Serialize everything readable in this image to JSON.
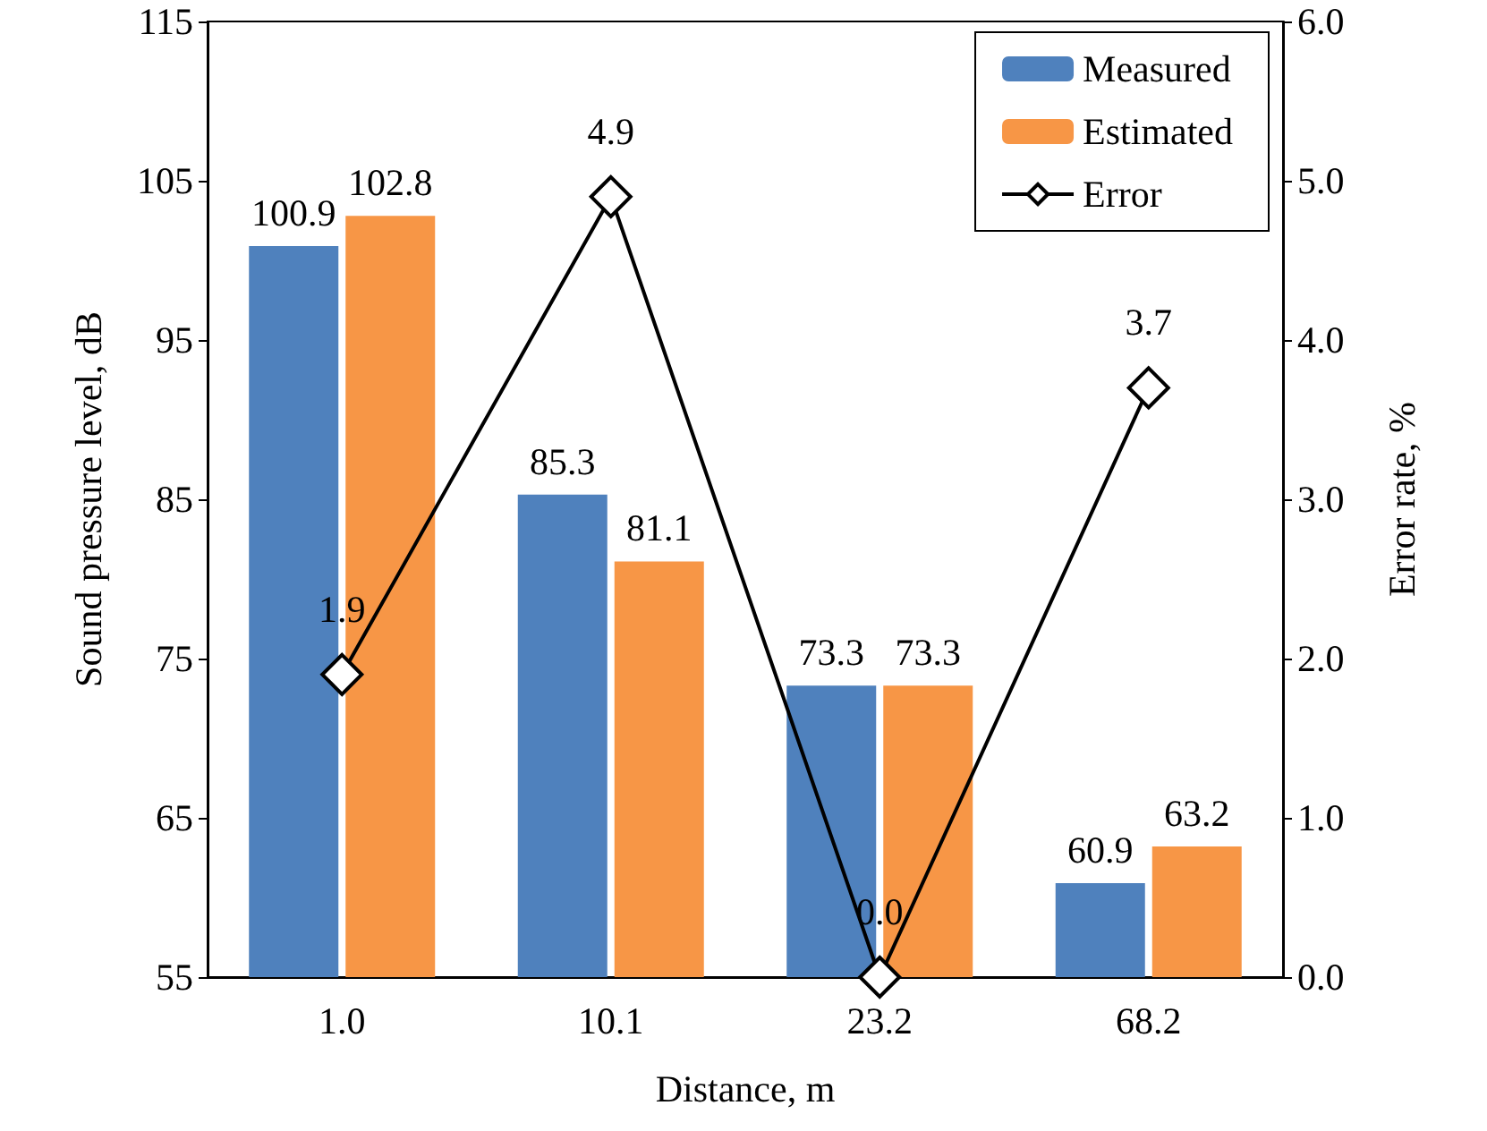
{
  "chart_data": {
    "type": "bar",
    "xlabel": "Distance, m",
    "ylabel": "Sound pressure level, dB",
    "y2label": "Error rate, %",
    "categories": [
      "1.0",
      "10.1",
      "23.2",
      "68.2"
    ],
    "series": [
      {
        "name": "Measured",
        "color": "#4f81bd",
        "values": [
          100.9,
          85.3,
          73.3,
          60.9
        ],
        "value_labels": [
          "100.9",
          "85.3",
          "73.3",
          "60.9"
        ]
      },
      {
        "name": "Estimated",
        "color": "#f79646",
        "values": [
          102.8,
          81.1,
          73.3,
          63.2
        ],
        "value_labels": [
          "102.8",
          "81.1",
          "73.3",
          "63.2"
        ]
      },
      {
        "name": "Error",
        "type": "line",
        "axis": "y2",
        "color": "#000000",
        "marker": "diamond",
        "values": [
          1.9,
          4.9,
          0.0,
          3.7
        ],
        "value_labels": [
          "1.9",
          "4.9",
          "0.0",
          "3.7"
        ]
      }
    ],
    "ylim": [
      55,
      115
    ],
    "yticks": [
      55,
      65,
      75,
      85,
      95,
      105,
      115
    ],
    "y2lim": [
      0,
      6
    ],
    "y2ticks": [
      {
        "value": 0,
        "label": "0.0"
      },
      {
        "value": 1,
        "label": "1.0"
      },
      {
        "value": 2,
        "label": "2.0"
      },
      {
        "value": 3,
        "label": "3.0"
      },
      {
        "value": 4,
        "label": "4.0"
      },
      {
        "value": 5,
        "label": "5.0"
      },
      {
        "value": 6,
        "label": "6.0"
      }
    ],
    "legend": "top right",
    "grid": false
  }
}
